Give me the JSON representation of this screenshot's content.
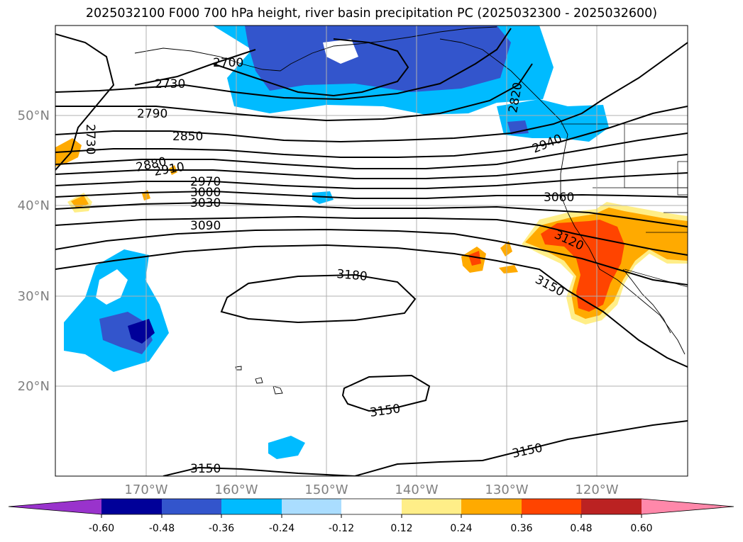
{
  "title": "2025032100 F000 700 hPa height, river basin precipitation PC (2025032300 - 2025032600)",
  "lat_labels": [
    "50°N",
    "40°N",
    "30°N",
    "20°N"
  ],
  "lon_labels": [
    "170°W",
    "160°W",
    "150°W",
    "140°W",
    "130°W",
    "120°W"
  ],
  "contour_labels": [
    "2700",
    "2730",
    "2730",
    "2790",
    "2850",
    "2880",
    "2910",
    "2940",
    "2970",
    "3000",
    "3030",
    "3060",
    "3090",
    "3120",
    "3150",
    "3150",
    "3150",
    "3150",
    "3180",
    "2820"
  ],
  "colorbar": {
    "ticks": [
      "-0.60",
      "-0.48",
      "-0.36",
      "-0.24",
      "-0.12",
      "0.12",
      "0.24",
      "0.36",
      "0.48",
      "0.60"
    ],
    "colors": [
      "#9933cc",
      "#000099",
      "#3355cc",
      "#00bbff",
      "#aaddff",
      "#ffffff",
      "#ffee88",
      "#ffaa00",
      "#ff4400",
      "#bb2222",
      "#ff88aa"
    ]
  },
  "colors": {
    "grid": "#b0b0b0",
    "axis_label": "#808080",
    "contour": "#000000"
  }
}
